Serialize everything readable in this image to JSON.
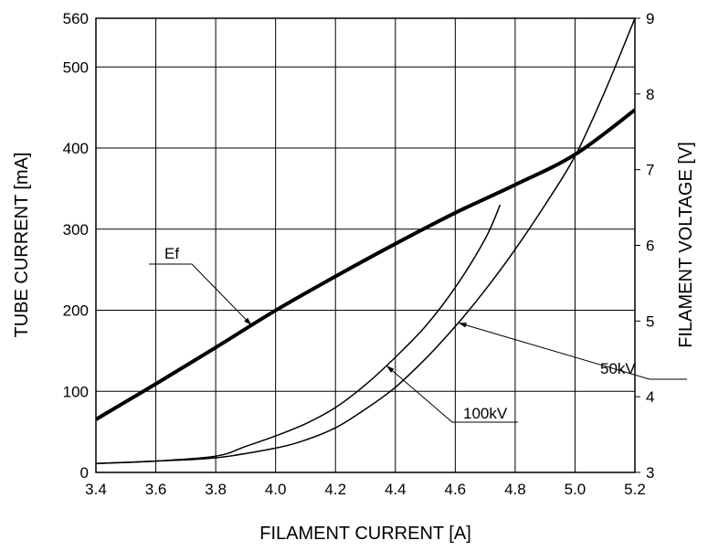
{
  "chart_data": {
    "type": "line",
    "title": "",
    "xlabel": "FILAMENT CURRENT  [A]",
    "ylabel_left": "TUBE CURRENT  [mA]",
    "ylabel_right": "FILAMENT VOLTAGE  [V]",
    "xlim": [
      3.4,
      5.2
    ],
    "ylim_left": [
      0,
      560
    ],
    "ylim_right": [
      3,
      9
    ],
    "x_ticks": [
      "3.4",
      "3.6",
      "3.8",
      "4.0",
      "4.2",
      "4.4",
      "4.6",
      "4.8",
      "5.0",
      "5.2"
    ],
    "y_left_ticks": [
      "0",
      "100",
      "200",
      "300",
      "400",
      "500",
      "560"
    ],
    "y_right_ticks": [
      "3",
      "4",
      "5",
      "6",
      "7",
      "8",
      "9"
    ],
    "grid": true,
    "series": [
      {
        "name": "Ef",
        "axis": "right",
        "x": [
          3.4,
          3.6,
          3.8,
          4.0,
          4.2,
          4.4,
          4.6,
          4.8,
          5.0,
          5.2
        ],
        "values": [
          3.7,
          4.17,
          4.65,
          5.14,
          5.59,
          6.02,
          6.43,
          6.8,
          7.2,
          7.79
        ]
      },
      {
        "name": "100kV",
        "axis": "left",
        "x": [
          3.4,
          3.6,
          3.8,
          3.9,
          4.0,
          4.1,
          4.2,
          4.3,
          4.4,
          4.5,
          4.6,
          4.7,
          4.75
        ],
        "values": [
          11,
          14,
          20,
          32,
          45,
          60,
          80,
          108,
          142,
          180,
          228,
          288,
          330
        ]
      },
      {
        "name": "50kV",
        "axis": "left",
        "x": [
          3.4,
          3.6,
          3.8,
          4.0,
          4.1,
          4.2,
          4.3,
          4.4,
          4.5,
          4.6,
          4.7,
          4.8,
          4.9,
          5.0,
          5.1,
          5.2
        ],
        "values": [
          11,
          14,
          18,
          30,
          40,
          55,
          78,
          105,
          140,
          180,
          225,
          275,
          330,
          390,
          470,
          560
        ]
      }
    ],
    "annotations": [
      "Ef",
      "50kV",
      "100kV"
    ]
  }
}
